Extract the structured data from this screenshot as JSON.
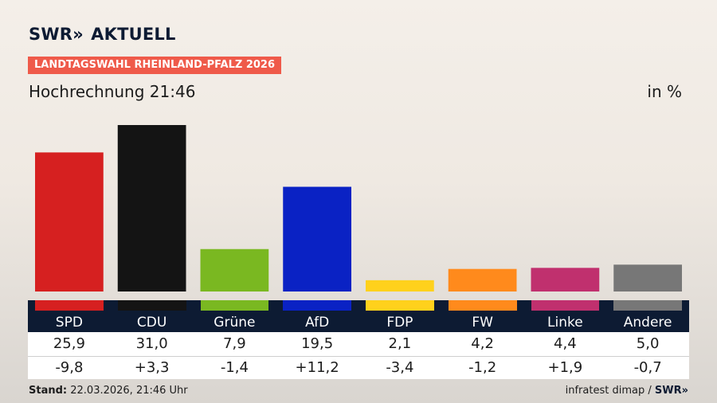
{
  "brand": {
    "logo_text": "SWR",
    "logo_arrows": "»",
    "logo_suffix": "AKTUELL"
  },
  "banner": "LANDTAGSWAHL RHEINLAND-PFALZ 2026",
  "subtitle": "Hochrechnung 21:46",
  "unit": "in %",
  "footer": {
    "stand_label": "Stand:",
    "stand_value": "22.03.2026, 21:46 Uhr",
    "source": "infratest dimap /",
    "source_brand": "SWR»"
  },
  "chart_data": {
    "type": "bar",
    "categories": [
      "SPD",
      "CDU",
      "Grüne",
      "AfD",
      "FDP",
      "FW",
      "Linke",
      "Andere"
    ],
    "values": [
      25.9,
      31.0,
      7.9,
      19.5,
      2.1,
      4.2,
      4.4,
      5.0
    ],
    "value_labels": [
      "25,9",
      "31,0",
      "7,9",
      "19,5",
      "2,1",
      "4,2",
      "4,4",
      "5,0"
    ],
    "differences": [
      "-9,8",
      "+3,3",
      "-1,4",
      "+11,2",
      "-3,4",
      "-1,2",
      "+1,9",
      "-0,7"
    ],
    "colors": [
      "#d62020",
      "#141414",
      "#7ab821",
      "#0a22c4",
      "#ffd11c",
      "#ff8a1c",
      "#c0306e",
      "#777777"
    ],
    "title": "Hochrechnung 21:46",
    "ylabel": "in %",
    "ylim": [
      0,
      31.0
    ],
    "grid": false,
    "legend": "none"
  }
}
